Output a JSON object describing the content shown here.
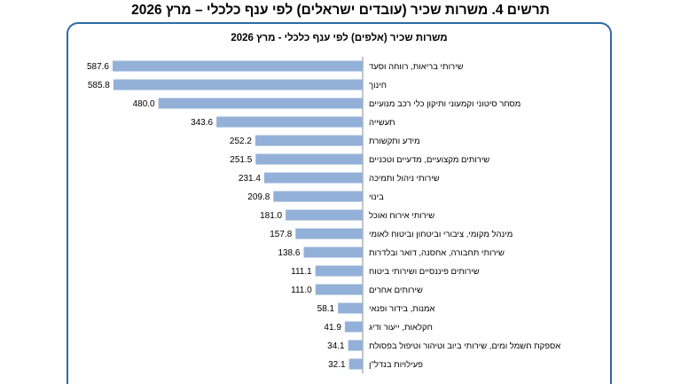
{
  "page": {
    "title": "תרשים 4. משרות שכיר (עובדים ישראלים) לפי ענף כלכלי – מרץ 2026"
  },
  "chart_data": {
    "type": "bar",
    "orientation": "horizontal",
    "title": "משרות שכיר (אלפים) לפי ענף כלכלי - מרץ 2026",
    "categories": [
      "שירותי בריאות, רווחה וסעד",
      "חינוך",
      "מסחר סיטוני וקמעוני ותיקון כלי רכב מנועיים",
      "תעשייה",
      "מידע ותקשורת",
      "שירותים מקצועיים, מדעיים וטכניים",
      "שירותי ניהול ותמיכה",
      "בינוי",
      "שירותי אירוח ואוכל",
      "מינהל מקומי, ציבורי וביטחון וביטוח לאומי",
      "שירותי תחבורה, אחסנה, דואר ובלדרות",
      "שירותים פיננסיים ושירותי ביטוח",
      "שירותים אחרים",
      "אמנות, בידור ופנאי",
      "חקלאות, ייעור ודיג",
      "אספקת חשמל ומים, שירותי ביוב וטיהור וטיפול בפסולת",
      "פעילויות בנדל\"ן"
    ],
    "values": [
      587.6,
      585.8,
      480.0,
      343.6,
      252.2,
      251.5,
      231.4,
      209.8,
      181.0,
      157.8,
      138.6,
      111.1,
      111.0,
      58.1,
      41.9,
      34.1,
      32.1
    ],
    "value_labels": [
      "587.6",
      "585.8",
      "480.0",
      "343.6",
      "252.2",
      "251.5",
      "231.4",
      "209.8",
      "181.0",
      "157.8",
      "138.6",
      "111.1",
      "111.0",
      "58.1",
      "41.9",
      "34.1",
      "32.1"
    ],
    "xlim": [
      0,
      600
    ],
    "bar_color": "#93b1d8",
    "frame_color": "#2f6aa6",
    "grid": false,
    "legend": "none",
    "bar_direction": "right-to-left"
  }
}
